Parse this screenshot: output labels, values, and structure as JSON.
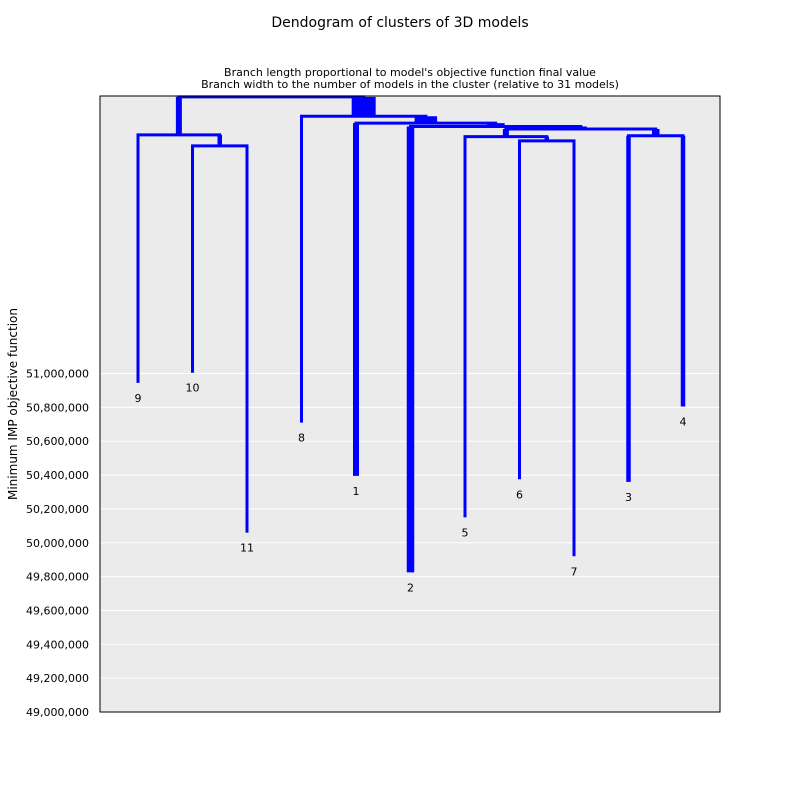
{
  "chart_data": {
    "type": "dendrogram",
    "title": "Dendogram of clusters of 3D models",
    "subtitle_lines": [
      "Branch length proportional to model's objective function final value",
      "Branch width to the number of models in the cluster (relative to 31 models)"
    ],
    "ylabel": "Minimum IMP objective function",
    "xlabel": "",
    "ylim": [
      49000000,
      52640000
    ],
    "yticks": [
      49000000,
      49200000,
      49400000,
      49600000,
      49800000,
      50000000,
      50200000,
      50400000,
      50600000,
      50800000,
      51000000
    ],
    "ytick_labels": [
      "49,000,000",
      "49,200,000",
      "49,400,000",
      "49,600,000",
      "49,800,000",
      "50,000,000",
      "50,200,000",
      "50,400,000",
      "50,600,000",
      "50,800,000",
      "51,000,000"
    ],
    "grid": true,
    "total_models": 31,
    "color": "#0000ff",
    "background_color": "#ebebeb",
    "leaves": [
      {
        "label": "9",
        "value": 50945000,
        "models": 1
      },
      {
        "label": "10",
        "value": 51005000,
        "models": 1
      },
      {
        "label": "11",
        "value": 50060000,
        "models": 1
      },
      {
        "label": "8",
        "value": 50710000,
        "models": 1
      },
      {
        "label": "1",
        "value": 50395000,
        "models": 3
      },
      {
        "label": "2",
        "value": 49825000,
        "models": 4
      },
      {
        "label": "5",
        "value": 50150000,
        "models": 1
      },
      {
        "label": "6",
        "value": 50375000,
        "models": 1
      },
      {
        "label": "7",
        "value": 49920000,
        "models": 1
      },
      {
        "label": "3",
        "value": 50360000,
        "models": 2
      },
      {
        "label": "4",
        "value": 50805000,
        "models": 2
      }
    ],
    "merges": [
      {
        "id": "A",
        "children": [
          "10",
          "11"
        ],
        "value": 52345000,
        "models": 2
      },
      {
        "id": "B",
        "children": [
          "9",
          "A"
        ],
        "value": 52410000,
        "models": 3
      },
      {
        "id": "C",
        "children": [
          "6",
          "7"
        ],
        "value": 52375000,
        "models": 2
      },
      {
        "id": "D",
        "children": [
          "5",
          "C"
        ],
        "value": 52400000,
        "models": 3
      },
      {
        "id": "E",
        "children": [
          "3",
          "4"
        ],
        "value": 52405000,
        "models": 4
      },
      {
        "id": "F",
        "children": [
          "D",
          "E"
        ],
        "value": 52445000,
        "models": 7
      },
      {
        "id": "G",
        "children": [
          "2",
          "F"
        ],
        "value": 52460000,
        "models": 11
      },
      {
        "id": "H",
        "children": [
          "1",
          "G"
        ],
        "value": 52480000,
        "models": 14
      },
      {
        "id": "I",
        "children": [
          "8",
          "H"
        ],
        "value": 52520000,
        "models": 15
      },
      {
        "id": "J",
        "children": [
          "B",
          "I"
        ],
        "value": 52635000,
        "models": 18
      }
    ]
  }
}
